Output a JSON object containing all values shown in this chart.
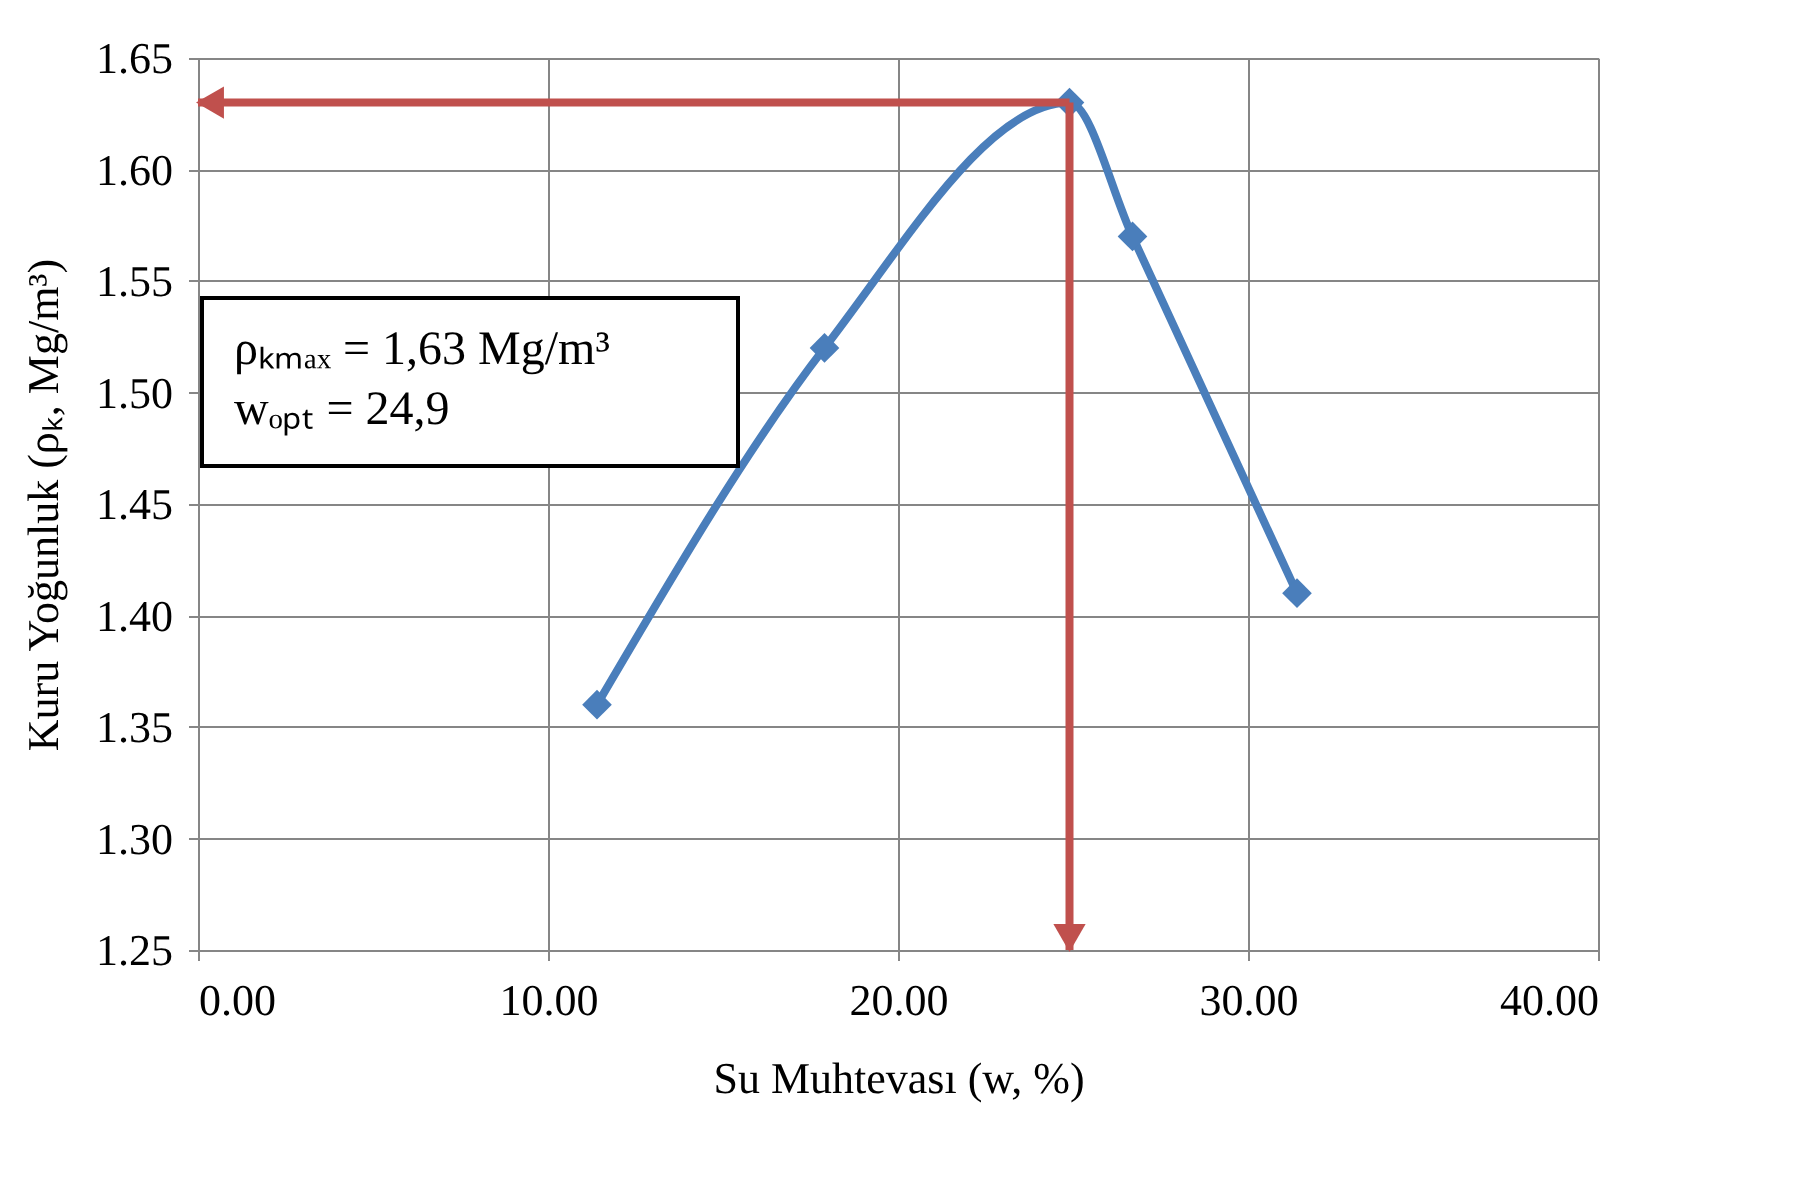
{
  "chart_data": {
    "type": "line",
    "xlabel": "Su Muhtevası (w, %)",
    "ylabel": "Kuru Yoğunluk (ρₖ, Mg/m³)",
    "x": [
      11.4,
      17.9,
      24.9,
      26.7,
      31.4
    ],
    "series": [
      {
        "color": "#4a7ebb",
        "values": [
          1.36,
          1.52,
          1.63,
          1.57,
          1.41
        ]
      }
    ],
    "marker": "diamond",
    "xlim": [
      0,
      40
    ],
    "xticks": [
      {
        "value": 0,
        "label": "0.00"
      },
      {
        "value": 10,
        "label": "10.00"
      },
      {
        "value": 20,
        "label": "20.00"
      },
      {
        "value": 30,
        "label": "30.00"
      },
      {
        "value": 40,
        "label": "40.00"
      }
    ],
    "ylim": [
      1.25,
      1.65
    ],
    "yticks": [
      1.25,
      {
        "value": 1.3,
        "label": "1.30"
      },
      1.35,
      {
        "value": 1.4,
        "label": "1.40"
      },
      1.45,
      {
        "value": 1.5,
        "label": "1.50"
      },
      1.55,
      {
        "value": 1.6,
        "label": "1.60"
      },
      1.65
    ],
    "grid": true,
    "ref_lines": [
      {
        "axis": "y",
        "value": 1.63,
        "color": "#c0504d"
      },
      {
        "axis": "x",
        "value": 24.9,
        "color": "#c0504d"
      }
    ],
    "annotations": [
      "ρₖₘₐₓ = 1,63 Mg/m³",
      "wₒₚₜ = 24,9"
    ]
  }
}
